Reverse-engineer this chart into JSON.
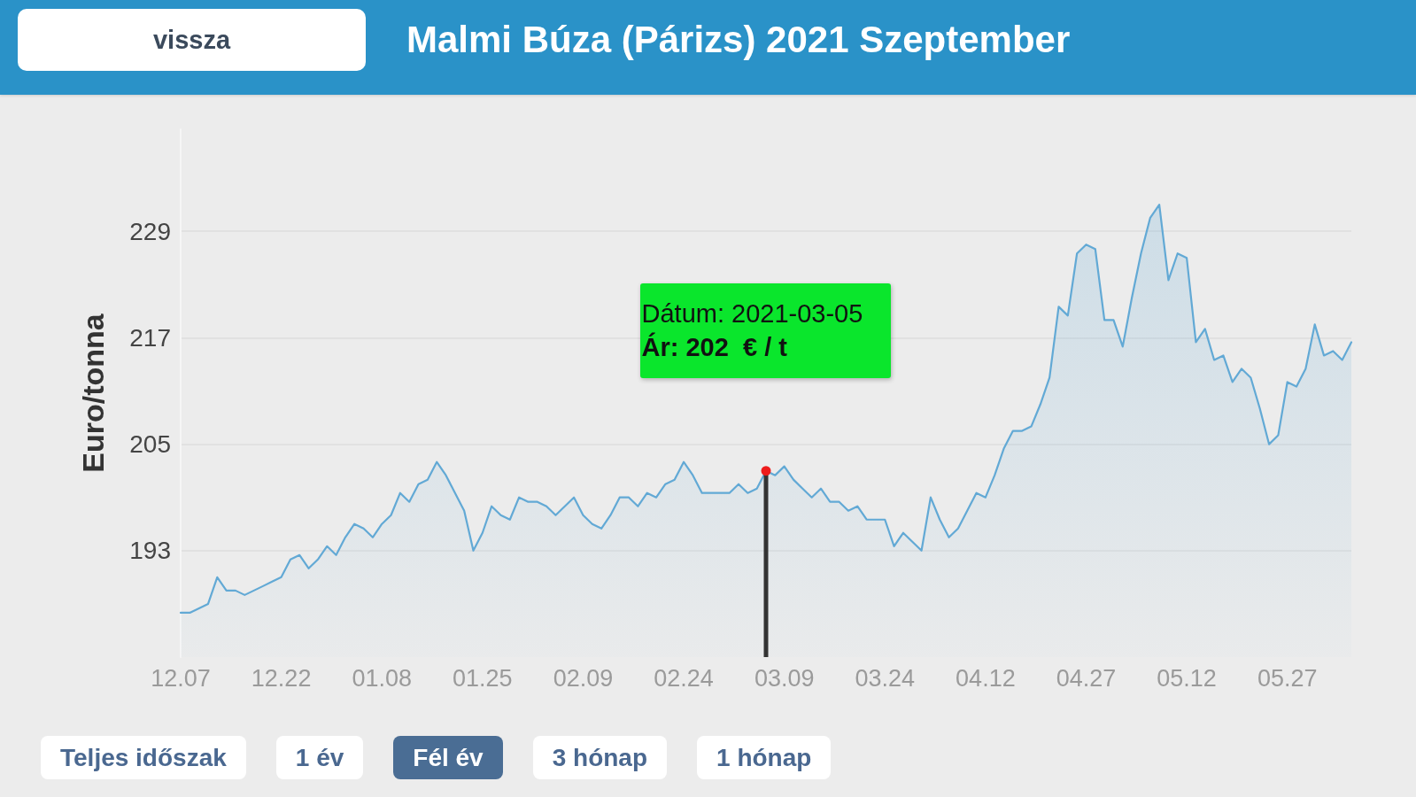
{
  "chart_data": {
    "type": "area",
    "title": "Malmi Búza (Párizs) 2021 Szeptember",
    "ylabel": "Euro/tonna",
    "categories": [
      "12.07",
      null,
      null,
      null,
      null,
      null,
      null,
      null,
      null,
      null,
      null,
      "12.22",
      null,
      null,
      null,
      null,
      null,
      null,
      null,
      null,
      null,
      null,
      "01.08",
      null,
      null,
      null,
      null,
      null,
      null,
      null,
      null,
      null,
      null,
      "01.25",
      null,
      null,
      null,
      null,
      null,
      null,
      null,
      null,
      null,
      null,
      "02.09",
      null,
      null,
      null,
      null,
      null,
      null,
      null,
      null,
      null,
      null,
      "02.24",
      null,
      null,
      null,
      null,
      null,
      null,
      null,
      null,
      null,
      null,
      "03.09",
      null,
      null,
      null,
      null,
      null,
      null,
      null,
      null,
      null,
      null,
      "03.24",
      null,
      null,
      null,
      null,
      null,
      null,
      null,
      null,
      null,
      null,
      "04.12",
      null,
      null,
      null,
      null,
      null,
      null,
      null,
      null,
      null,
      null,
      "04.27",
      null,
      null,
      null,
      null,
      null,
      null,
      null,
      null,
      null,
      null,
      "05.12",
      null,
      null,
      null,
      null,
      null,
      null,
      null,
      null,
      null,
      null,
      "05.27",
      null,
      null,
      null,
      null,
      null,
      null,
      null
    ],
    "values": [
      186,
      186,
      186.5,
      187,
      190,
      188.5,
      188.5,
      188,
      188.5,
      189,
      189.5,
      190,
      192,
      192.5,
      191,
      192,
      193.5,
      192.5,
      194.5,
      196,
      195.5,
      194.5,
      196,
      197,
      199.5,
      198.5,
      200.5,
      201,
      203,
      201.5,
      199.5,
      197.5,
      193,
      195,
      198,
      197,
      196.5,
      199,
      198.5,
      198.5,
      198,
      197,
      198,
      199,
      197,
      196,
      195.5,
      197,
      199,
      199,
      198,
      199.5,
      199,
      200.5,
      201,
      203,
      201.5,
      199.5,
      199.5,
      199.5,
      199.5,
      200.5,
      199.5,
      200,
      202,
      201.5,
      202.5,
      201,
      200,
      199,
      200,
      198.5,
      198.5,
      197.5,
      198,
      196.5,
      196.5,
      196.5,
      193.5,
      195,
      194,
      193,
      199,
      196.5,
      194.5,
      195.5,
      197.5,
      199.5,
      199,
      201.5,
      204.5,
      206.5,
      206.5,
      207,
      209.5,
      212.5,
      220.5,
      219.5,
      226.5,
      227.5,
      227,
      219,
      219,
      216,
      221.5,
      226.5,
      230.5,
      232,
      223.5,
      226.5,
      226,
      216.5,
      218,
      214.5,
      215,
      212,
      213.5,
      212.5,
      209,
      205,
      206,
      212,
      211.5,
      213.5,
      218.5,
      215,
      215.5,
      214.5,
      216.5
    ],
    "color": "#62a9d5",
    "ylim": [
      181,
      240.5
    ],
    "yticks": [
      193,
      205,
      217,
      229
    ],
    "grid": "y",
    "annotations": [
      "Dátum: 2021-03-05\nÁr: 202  € / t",
      "vissza",
      "Teljes időszak",
      "1 év",
      "Fél év",
      "3 hónap",
      "1 hónap"
    ]
  }
}
